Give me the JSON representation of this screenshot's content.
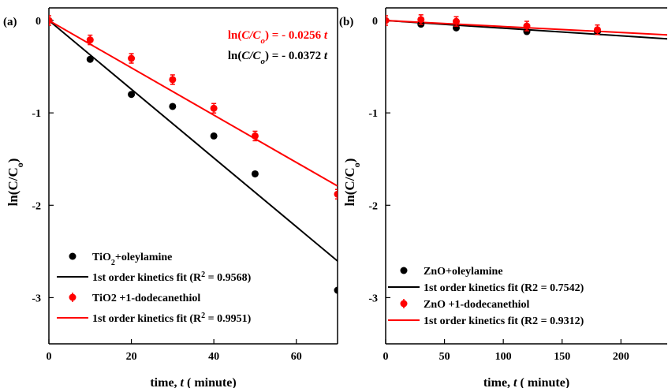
{
  "chart_data": [
    {
      "panel": "(a)",
      "type": "scatter",
      "xlabel": "time, t ( minute)",
      "ylabel": "ln(C/Co)",
      "xlim": [
        0,
        70
      ],
      "ylim": [
        -3.5,
        0
      ],
      "xticks": [
        "0",
        "20",
        "40",
        "60"
      ],
      "yticks": [
        "0",
        "-1",
        "-2",
        "-3"
      ],
      "equations": [
        {
          "text": "ln(C/Co) = - 0.0256 t",
          "color": "#ff0000"
        },
        {
          "text": "ln(C/Co) = - 0.0372 t",
          "color": "#000000"
        }
      ],
      "series": [
        {
          "name": "TiO2+oleylamine",
          "color": "#000000",
          "error_bars": false,
          "x": [
            0,
            10,
            20,
            30,
            40,
            50,
            70
          ],
          "y": [
            0,
            -0.42,
            -0.8,
            -0.93,
            -1.25,
            -1.66,
            -2.92
          ]
        },
        {
          "name": "TiO2 +1-dodecanethiol",
          "color": "#ff0000",
          "error_bars": true,
          "x": [
            0,
            10,
            20,
            30,
            40,
            50,
            70
          ],
          "y": [
            0,
            -0.21,
            -0.41,
            -0.64,
            -0.95,
            -1.25,
            -1.88
          ]
        }
      ],
      "fits": [
        {
          "name": "1st order kinetics fit (R2 = 0.9568)",
          "color": "#000000",
          "slope": -0.0372,
          "x": [
            0,
            70
          ]
        },
        {
          "name": "1st order kinetics fit (R2 = 0.9951)",
          "color": "#ff0000",
          "slope": -0.0256,
          "x": [
            0,
            70
          ]
        }
      ],
      "legend": "bottom-left"
    },
    {
      "panel": "(b)",
      "type": "scatter",
      "xlabel": "time, t ( minute)",
      "ylabel": "ln(C/Co)",
      "xlim": [
        0,
        240
      ],
      "ylim": [
        -3.5,
        0
      ],
      "xticks": [
        "0",
        "50",
        "100",
        "150",
        "200"
      ],
      "yticks": [
        "0",
        "-1",
        "-2",
        "-3"
      ],
      "series": [
        {
          "name": "ZnO+oleylamine",
          "color": "#000000",
          "error_bars": false,
          "x": [
            0,
            30,
            60,
            120,
            180
          ],
          "y": [
            0,
            -0.04,
            -0.08,
            -0.12,
            -0.12
          ]
        },
        {
          "name": "ZnO +1-dodecanethiol",
          "color": "#ff0000",
          "error_bars": true,
          "x": [
            0,
            30,
            60,
            120,
            180
          ],
          "y": [
            0,
            0.01,
            -0.01,
            -0.06,
            -0.1
          ]
        }
      ],
      "fits": [
        {
          "name": "1st order kinetics fit (R2 = 0.7542)",
          "color": "#000000",
          "slope": -0.00083,
          "x": [
            0,
            240
          ]
        },
        {
          "name": "1st order kinetics fit (R2 = 0.9312)",
          "color": "#ff0000",
          "slope": -0.00065,
          "x": [
            0,
            240
          ]
        }
      ],
      "legend": "bottom-left"
    }
  ]
}
